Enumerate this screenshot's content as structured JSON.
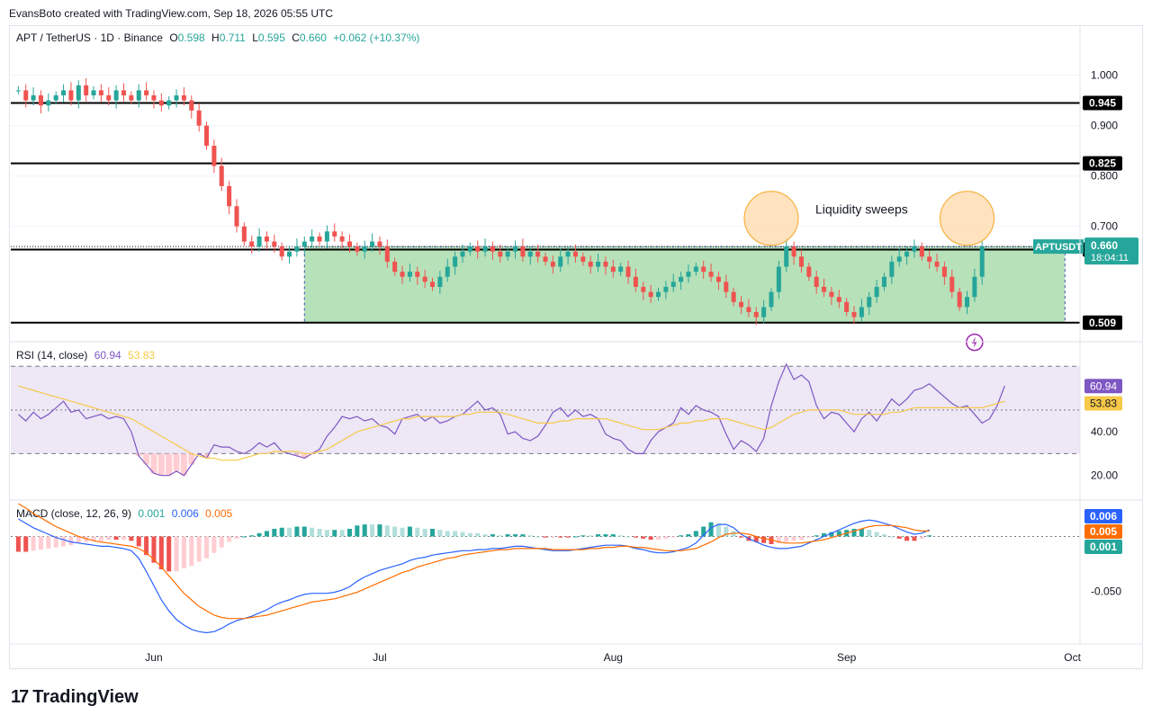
{
  "header": {
    "caption": "EvansBoto created with TradingView.com, Sep 18, 2026 05:55 UTC"
  },
  "legend": {
    "symbol": "APT / TetherUS · 1D · Binance",
    "open_label": "O",
    "open": "0.598",
    "high_label": "H",
    "high": "0.711",
    "low_label": "L",
    "low": "0.595",
    "close_label": "C",
    "close": "0.660",
    "change": "+0.062 (+10.37%)"
  },
  "rsi_legend": {
    "label": "RSI (14, close)",
    "rsi": "60.94",
    "ma": "53.83"
  },
  "macd_legend": {
    "label": "MACD (close, 12, 26, 9)",
    "hist": "0.001",
    "macd": "0.006",
    "signal": "0.005"
  },
  "annotation": {
    "text": "Liquidity sweeps"
  },
  "brand": {
    "name": "TradingView"
  },
  "colors": {
    "up": "#26a69a",
    "down": "#ef5350",
    "zone": "#b7e1b9",
    "zone_border": "#3f51b5",
    "circle_fill": "#ffd8a8",
    "circle_stroke": "#f5a623",
    "rsi_line": "#7e57c2",
    "rsi_ma": "#f7c948",
    "rsi_band": "#ede7f6",
    "macd_line": "#2962ff",
    "signal_line": "#ff6d00",
    "hist_up_strong": "#26a69a",
    "hist_up_weak": "#b2dfdb",
    "hist_down_strong": "#ef5350",
    "hist_down_weak": "#ffcdd2",
    "flash_icon": "#9c27b0"
  },
  "chart_data": [
    {
      "type": "candlestick",
      "name": "APT / TetherUS",
      "xlim": [
        0,
        142
      ],
      "ylim": [
        0.48,
        1.06
      ],
      "x_ticks": [
        {
          "label": "Jun",
          "x": 19
        },
        {
          "label": "Jul",
          "x": 49
        },
        {
          "label": "Aug",
          "x": 80
        },
        {
          "label": "Sep",
          "x": 111
        },
        {
          "label": "Oct",
          "x": 141
        }
      ],
      "y_ticks": [
        "1.000",
        "0.900",
        "0.800",
        "0.700"
      ],
      "horizontal_levels": [
        "0.945",
        "0.825",
        "0.654",
        "0.509"
      ],
      "current_price_tag": {
        "symbol": "APTUSDT",
        "price": "0.660",
        "countdown": "18:04:11"
      },
      "zone": {
        "x0": 39,
        "x1": 140,
        "y0": 0.509,
        "y1": 0.66
      },
      "sweep_circles": [
        {
          "x": 101,
          "y": 0.716
        },
        {
          "x": 127,
          "y": 0.716
        }
      ],
      "flash_icon_at": {
        "x": 128,
        "y": 0.47
      },
      "candles": []
    },
    {
      "type": "line",
      "name": "RSI (14, close)",
      "ylim": [
        10,
        80
      ],
      "y_ticks": [
        "40.00",
        "20.00"
      ],
      "bands": {
        "upper": 70,
        "middle": 50,
        "lower": 30
      },
      "value_tags": {
        "rsi": "60.94",
        "ma": "53.83"
      },
      "series": [
        {
          "name": "RSI",
          "values": [
            48,
            45,
            49,
            46,
            48,
            51,
            54,
            49,
            50,
            46,
            47,
            48,
            46,
            47,
            46,
            40,
            29,
            25,
            21,
            20,
            20,
            22,
            20,
            25,
            30,
            28,
            34,
            33,
            33,
            31,
            30,
            32,
            35,
            33,
            35,
            31,
            30,
            29,
            28,
            30,
            32,
            38,
            42,
            47,
            46,
            47,
            45,
            46,
            43,
            42,
            39,
            46,
            47,
            48,
            45,
            47,
            44,
            45,
            47,
            48,
            51,
            54,
            50,
            51,
            48,
            39,
            40,
            37,
            36,
            38,
            43,
            49,
            51,
            47,
            50,
            47,
            48,
            46,
            39,
            37,
            36,
            32,
            30,
            30,
            36,
            40,
            42,
            44,
            51,
            48,
            52,
            50,
            49,
            47,
            39,
            32,
            36,
            34,
            31,
            37,
            52,
            63,
            71,
            64,
            66,
            63,
            52,
            46,
            49,
            48,
            44,
            40,
            46,
            49,
            45,
            50,
            55,
            52,
            55,
            59,
            60,
            62,
            59,
            56,
            53,
            51,
            52,
            48,
            44,
            46,
            52,
            61
          ]
        },
        {
          "name": "RSI MA",
          "values": [
            61,
            60,
            59,
            58,
            57,
            56,
            55,
            54,
            53,
            52,
            51,
            50,
            49,
            48,
            47,
            46,
            44,
            42,
            40,
            38,
            36,
            34,
            32,
            30,
            29,
            28,
            28,
            27,
            27,
            27,
            28,
            29,
            30,
            30,
            31,
            31,
            31,
            31,
            30,
            30,
            31,
            32,
            34,
            36,
            38,
            40,
            41,
            42,
            43,
            44,
            45,
            46,
            46,
            47,
            47,
            47,
            47,
            47,
            47,
            48,
            48,
            49,
            49,
            49,
            49,
            48,
            47,
            46,
            45,
            44,
            44,
            44,
            45,
            45,
            46,
            46,
            46,
            46,
            46,
            45,
            44,
            43,
            42,
            41,
            41,
            41,
            42,
            43,
            44,
            44,
            45,
            45,
            46,
            46,
            46,
            45,
            44,
            43,
            42,
            41,
            42,
            44,
            46,
            48,
            49,
            50,
            50,
            50,
            50,
            50,
            49,
            48,
            48,
            48,
            48,
            48,
            49,
            49,
            50,
            51,
            51,
            51,
            51,
            51,
            51,
            51,
            51,
            51,
            51,
            52,
            53,
            54
          ]
        }
      ]
    },
    {
      "type": "line",
      "name": "MACD (close, 12, 26, 9)",
      "ylim": [
        -0.095,
        0.03
      ],
      "y_ticks": [
        "-0.050"
      ],
      "value_tags": {
        "macd": "0.006",
        "signal": "0.005",
        "hist": "0.001"
      },
      "series": [
        {
          "name": "MACD",
          "values": [
            0.016,
            0.012,
            0.008,
            0.005,
            0.002,
            -0.001,
            -0.003,
            -0.005,
            -0.006,
            -0.007,
            -0.008,
            -0.009,
            -0.009,
            -0.01,
            -0.011,
            -0.013,
            -0.02,
            -0.032,
            -0.045,
            -0.058,
            -0.068,
            -0.076,
            -0.081,
            -0.085,
            -0.087,
            -0.088,
            -0.087,
            -0.084,
            -0.08,
            -0.077,
            -0.075,
            -0.073,
            -0.07,
            -0.067,
            -0.063,
            -0.06,
            -0.058,
            -0.055,
            -0.053,
            -0.052,
            -0.052,
            -0.052,
            -0.051,
            -0.049,
            -0.046,
            -0.041,
            -0.037,
            -0.034,
            -0.031,
            -0.029,
            -0.027,
            -0.025,
            -0.022,
            -0.02,
            -0.019,
            -0.017,
            -0.016,
            -0.015,
            -0.014,
            -0.013,
            -0.013,
            -0.012,
            -0.012,
            -0.011,
            -0.011,
            -0.01,
            -0.009,
            -0.009,
            -0.01,
            -0.011,
            -0.012,
            -0.013,
            -0.013,
            -0.013,
            -0.012,
            -0.011,
            -0.01,
            -0.009,
            -0.008,
            -0.008,
            -0.008,
            -0.009,
            -0.011,
            -0.012,
            -0.014,
            -0.015,
            -0.015,
            -0.014,
            -0.012,
            -0.01,
            -0.006,
            0.001,
            0.008,
            0.011,
            0.011,
            0.008,
            0.002,
            -0.002,
            -0.005,
            -0.008,
            -0.01,
            -0.011,
            -0.011,
            -0.01,
            -0.009,
            -0.006,
            -0.003,
            0.0,
            0.003,
            0.006,
            0.009,
            0.012,
            0.014,
            0.015,
            0.014,
            0.012,
            0.01,
            0.007,
            0.004,
            0.002,
            0.003,
            0.006
          ]
        },
        {
          "name": "Signal",
          "values": [
            0.03,
            0.026,
            0.021,
            0.017,
            0.013,
            0.009,
            0.006,
            0.003,
            0.0,
            -0.002,
            -0.004,
            -0.005,
            -0.006,
            -0.007,
            -0.008,
            -0.009,
            -0.011,
            -0.015,
            -0.021,
            -0.028,
            -0.036,
            -0.044,
            -0.052,
            -0.058,
            -0.064,
            -0.068,
            -0.072,
            -0.074,
            -0.075,
            -0.075,
            -0.075,
            -0.074,
            -0.073,
            -0.072,
            -0.07,
            -0.068,
            -0.066,
            -0.064,
            -0.062,
            -0.06,
            -0.059,
            -0.058,
            -0.057,
            -0.055,
            -0.053,
            -0.051,
            -0.048,
            -0.045,
            -0.042,
            -0.039,
            -0.036,
            -0.033,
            -0.031,
            -0.028,
            -0.026,
            -0.024,
            -0.022,
            -0.02,
            -0.019,
            -0.017,
            -0.016,
            -0.015,
            -0.014,
            -0.013,
            -0.012,
            -0.012,
            -0.011,
            -0.011,
            -0.011,
            -0.011,
            -0.011,
            -0.012,
            -0.012,
            -0.012,
            -0.012,
            -0.012,
            -0.011,
            -0.011,
            -0.01,
            -0.01,
            -0.009,
            -0.009,
            -0.01,
            -0.01,
            -0.011,
            -0.012,
            -0.013,
            -0.013,
            -0.013,
            -0.012,
            -0.011,
            -0.008,
            -0.005,
            -0.001,
            0.002,
            0.003,
            0.003,
            0.002,
            0.0,
            -0.002,
            -0.003,
            -0.005,
            -0.006,
            -0.006,
            -0.006,
            -0.005,
            -0.004,
            -0.003,
            -0.001,
            0.001,
            0.003,
            0.005,
            0.007,
            0.009,
            0.01,
            0.01,
            0.01,
            0.009,
            0.008,
            0.006,
            0.005,
            0.005
          ]
        },
        {
          "name": "Histogram",
          "values": []
        }
      ]
    }
  ]
}
